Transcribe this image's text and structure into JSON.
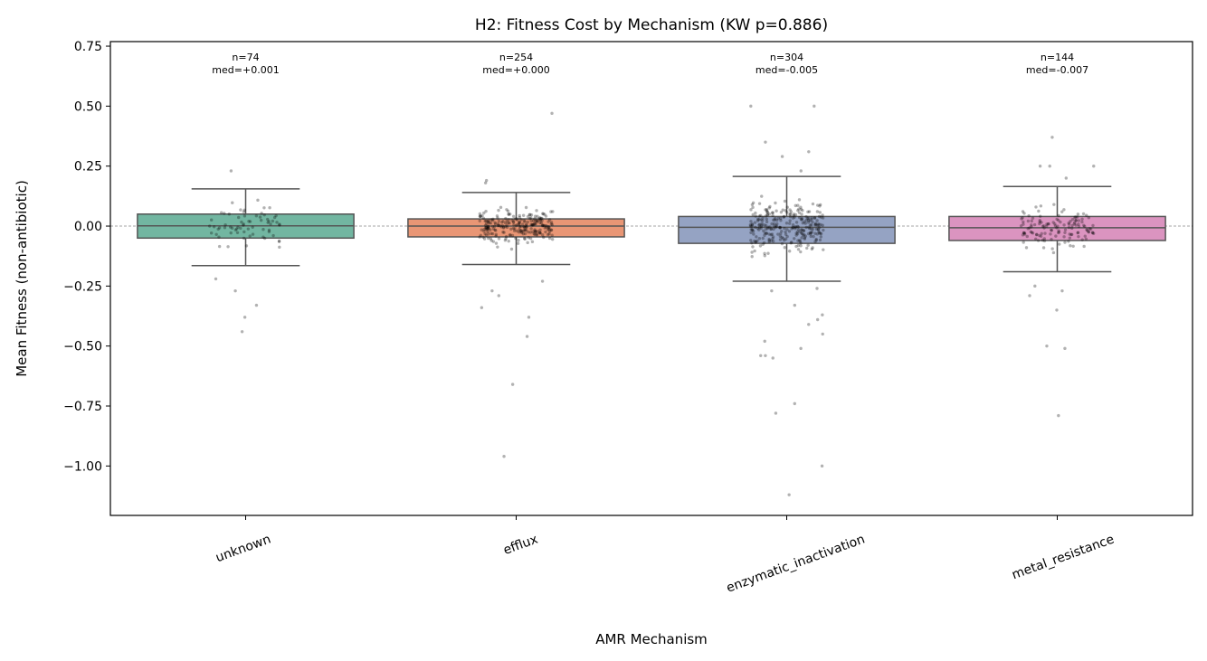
{
  "chart_data": {
    "type": "box",
    "title": "H2: Fitness Cost by Mechanism (KW p=0.886)",
    "xlabel": "AMR Mechanism",
    "ylabel": "Mean Fitness (non-antibiotic)",
    "ylim": [
      -1.206,
      0.769
    ],
    "yticks": [
      0.75,
      0.5,
      0.25,
      0.0,
      -0.25,
      -0.5,
      -0.75,
      -1.0
    ],
    "ytick_labels": [
      "0.75",
      "0.50",
      "0.25",
      "0.00",
      "−0.25",
      "−0.50",
      "−0.75",
      "−1.00"
    ],
    "reference_line": {
      "y": 0,
      "style": "dashed",
      "color": "#888888"
    },
    "grid": false,
    "categories": [
      "unknown",
      "efflux",
      "enzymatic_inactivation",
      "metal_resistance"
    ],
    "series": [
      {
        "category": "unknown",
        "color": "#72b6a1",
        "n": 74,
        "median": 0.001,
        "q1": -0.05,
        "q3": 0.05,
        "whisker_low": -0.165,
        "whisker_high": 0.155,
        "annotation": [
          "n=74",
          "med=+0.001"
        ],
        "outliers": [
          0.23,
          -0.22,
          -0.27,
          -0.33,
          -0.38,
          -0.44
        ]
      },
      {
        "category": "efflux",
        "color": "#e99675",
        "n": 254,
        "median": 0.0,
        "q1": -0.045,
        "q3": 0.03,
        "whisker_low": -0.16,
        "whisker_high": 0.14,
        "annotation": [
          "n=254",
          "med=+0.000"
        ],
        "outliers": [
          0.47,
          0.19,
          0.18,
          -0.23,
          -0.27,
          -0.29,
          -0.34,
          -0.38,
          -0.46,
          -0.66,
          -0.96
        ]
      },
      {
        "category": "enzymatic_inactivation",
        "color": "#95a3c3",
        "n": 304,
        "median": -0.005,
        "q1": -0.072,
        "q3": 0.04,
        "whisker_low": -0.23,
        "whisker_high": 0.207,
        "annotation": [
          "n=304",
          "med=-0.005"
        ],
        "outliers": [
          0.5,
          0.5,
          0.35,
          0.31,
          0.29,
          0.23,
          -0.26,
          -0.27,
          -0.33,
          -0.37,
          -0.39,
          -0.41,
          -0.45,
          -0.48,
          -0.51,
          -0.54,
          -0.54,
          -0.55,
          -0.74,
          -0.78,
          -1.0,
          -1.12
        ]
      },
      {
        "category": "metal_resistance",
        "color": "#db94c0",
        "n": 144,
        "median": -0.007,
        "q1": -0.06,
        "q3": 0.04,
        "whisker_low": -0.19,
        "whisker_high": 0.165,
        "annotation": [
          "n=144",
          "med=-0.007"
        ],
        "outliers": [
          0.37,
          0.25,
          0.25,
          0.25,
          0.2,
          -0.25,
          -0.27,
          -0.29,
          -0.35,
          -0.5,
          -0.51,
          -0.79
        ]
      }
    ]
  }
}
